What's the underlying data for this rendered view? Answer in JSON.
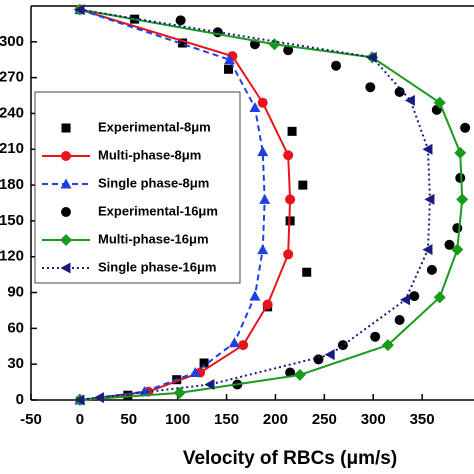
{
  "chart_data": {
    "type": "scatter",
    "x_label": "Velocity of RBCs (μm/s)",
    "xlim": [
      -50,
      400
    ],
    "xticks": [
      -50,
      0,
      50,
      100,
      150,
      200,
      250,
      300,
      350
    ],
    "ylim": [
      0,
      330
    ],
    "yticks": [
      0,
      30,
      60,
      90,
      120,
      150,
      180,
      210,
      240,
      270,
      300
    ],
    "legend": "upper left",
    "series": [
      {
        "name": "Experimental-8μm",
        "color": "#000000",
        "marker": "square",
        "line": "none",
        "x": [
          56,
          105,
          152,
          156,
          217,
          228,
          215,
          232,
          192,
          127,
          99,
          49
        ],
        "y": [
          319,
          299,
          277,
          253,
          225,
          180,
          150,
          107,
          78,
          31,
          17,
          4
        ]
      },
      {
        "name": "Multi-phase-8μm",
        "color": "#e8141c",
        "marker": "circle",
        "line": "solid",
        "x": [
          0,
          156,
          187,
          213,
          215,
          213,
          192,
          167,
          123,
          70,
          0
        ],
        "y": [
          327,
          288,
          249,
          205,
          168,
          122,
          80,
          46,
          23,
          7,
          0
        ]
      },
      {
        "name": "Single phase-8μm",
        "color": "#1f3fe0",
        "marker": "triangle-up",
        "line": "dashed",
        "x": [
          0,
          153,
          179,
          187,
          189,
          187,
          179,
          158,
          118,
          66,
          0
        ],
        "y": [
          327,
          285,
          245,
          208,
          168,
          126,
          87,
          48,
          23,
          7,
          0
        ]
      },
      {
        "name": "Experimental-16μm",
        "color": "#000000",
        "marker": "circle",
        "line": "none",
        "x": [
          103,
          141,
          179,
          213,
          262,
          297,
          327,
          365,
          394,
          389,
          386,
          378,
          360,
          342,
          327,
          302,
          269,
          244,
          215,
          161
        ],
        "y": [
          318,
          308,
          298,
          293,
          280,
          262,
          258,
          243,
          228,
          186,
          144,
          130,
          109,
          87,
          67,
          53,
          46,
          34,
          23,
          13
        ]
      },
      {
        "name": "Multi-phase-16μm",
        "color": "#1a9a1a",
        "marker": "diamond",
        "line": "solid",
        "x": [
          0,
          199,
          299,
          368,
          389,
          391,
          386,
          368,
          315,
          225,
          102,
          0
        ],
        "y": [
          327,
          298,
          287,
          249,
          207,
          168,
          126,
          86,
          46,
          21,
          6,
          0
        ]
      },
      {
        "name": "Single phase-16μm",
        "color": "#1a1a80",
        "marker": "triangle-left",
        "line": "dotted",
        "x": [
          0,
          299,
          338,
          356,
          358,
          356,
          333,
          256,
          133,
          20,
          0
        ],
        "y": [
          327,
          287,
          251,
          210,
          168,
          126,
          84,
          38,
          13,
          2,
          0
        ]
      }
    ]
  }
}
